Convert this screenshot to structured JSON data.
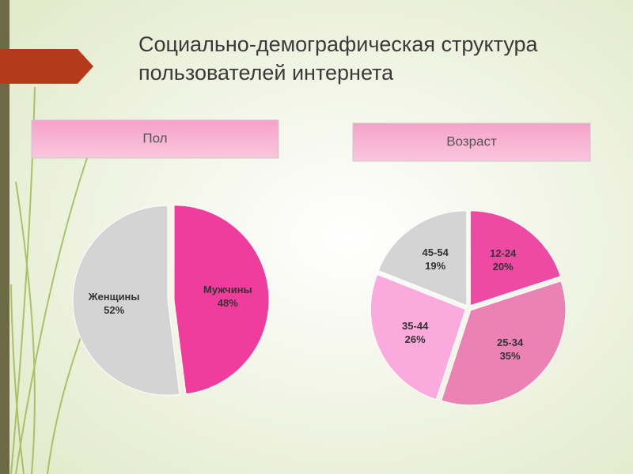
{
  "slide": {
    "title": "Социально-демографическая структура пользователей интернета"
  },
  "chart_data": [
    {
      "type": "pie",
      "title": "Пол",
      "categories": [
        "Мужчины",
        "Женщины"
      ],
      "values": [
        48,
        52
      ],
      "value_labels": [
        "48%",
        "52%"
      ],
      "colors": [
        "#f03c9c",
        "#d4d4d4"
      ]
    },
    {
      "type": "pie",
      "title": "Возраст",
      "categories": [
        "12-24",
        "25-34",
        "35-44",
        "45-54"
      ],
      "values": [
        20,
        35,
        26,
        19
      ],
      "value_labels": [
        "20%",
        "35%",
        "26%",
        "19%"
      ],
      "colors": [
        "#ee4aa3",
        "#ea82b4",
        "#fbaadd",
        "#d4d4d4"
      ]
    }
  ]
}
